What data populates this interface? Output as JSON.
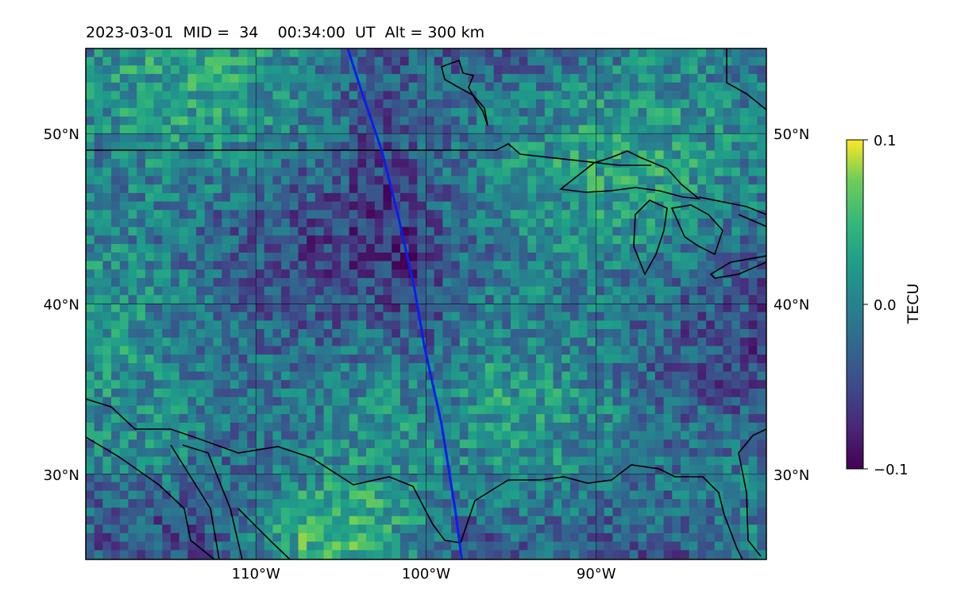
{
  "title": {
    "date": "2023-03-01",
    "mid_label": "MID =",
    "mid_value": "34",
    "time": "00:34:00",
    "time_unit": "UT",
    "alt_label": "Alt =",
    "alt_value": "300",
    "alt_unit": "km"
  },
  "map": {
    "lon_range": [
      -120,
      -80
    ],
    "lat_range": [
      25,
      55
    ],
    "field": "TEC perturbation",
    "lat_ticks": [
      {
        "value": 50,
        "label": "50°N"
      },
      {
        "value": 40,
        "label": "40°N"
      },
      {
        "value": 30,
        "label": "30°N"
      }
    ],
    "lon_ticks": [
      {
        "value": -110,
        "label": "110°W"
      },
      {
        "value": -100,
        "label": "100°W"
      },
      {
        "value": -90,
        "label": "90°W"
      }
    ],
    "gridlines": true,
    "track_color": "#0a1ef0",
    "track": [
      [
        -104.6,
        55
      ],
      [
        -103.8,
        52.5
      ],
      [
        -102.6,
        49
      ],
      [
        -101.6,
        45
      ],
      [
        -100.7,
        41
      ],
      [
        -100.1,
        37.5
      ],
      [
        -99.1,
        33
      ],
      [
        -98.3,
        28
      ],
      [
        -97.9,
        25
      ]
    ]
  },
  "colorbar": {
    "label": "TECU",
    "colormap": "viridis",
    "ticks": [
      {
        "value": 0.1,
        "label": "0.1"
      },
      {
        "value": 0.0,
        "label": "0.0"
      },
      {
        "value": -0.1,
        "label": "−0.1"
      }
    ]
  }
}
